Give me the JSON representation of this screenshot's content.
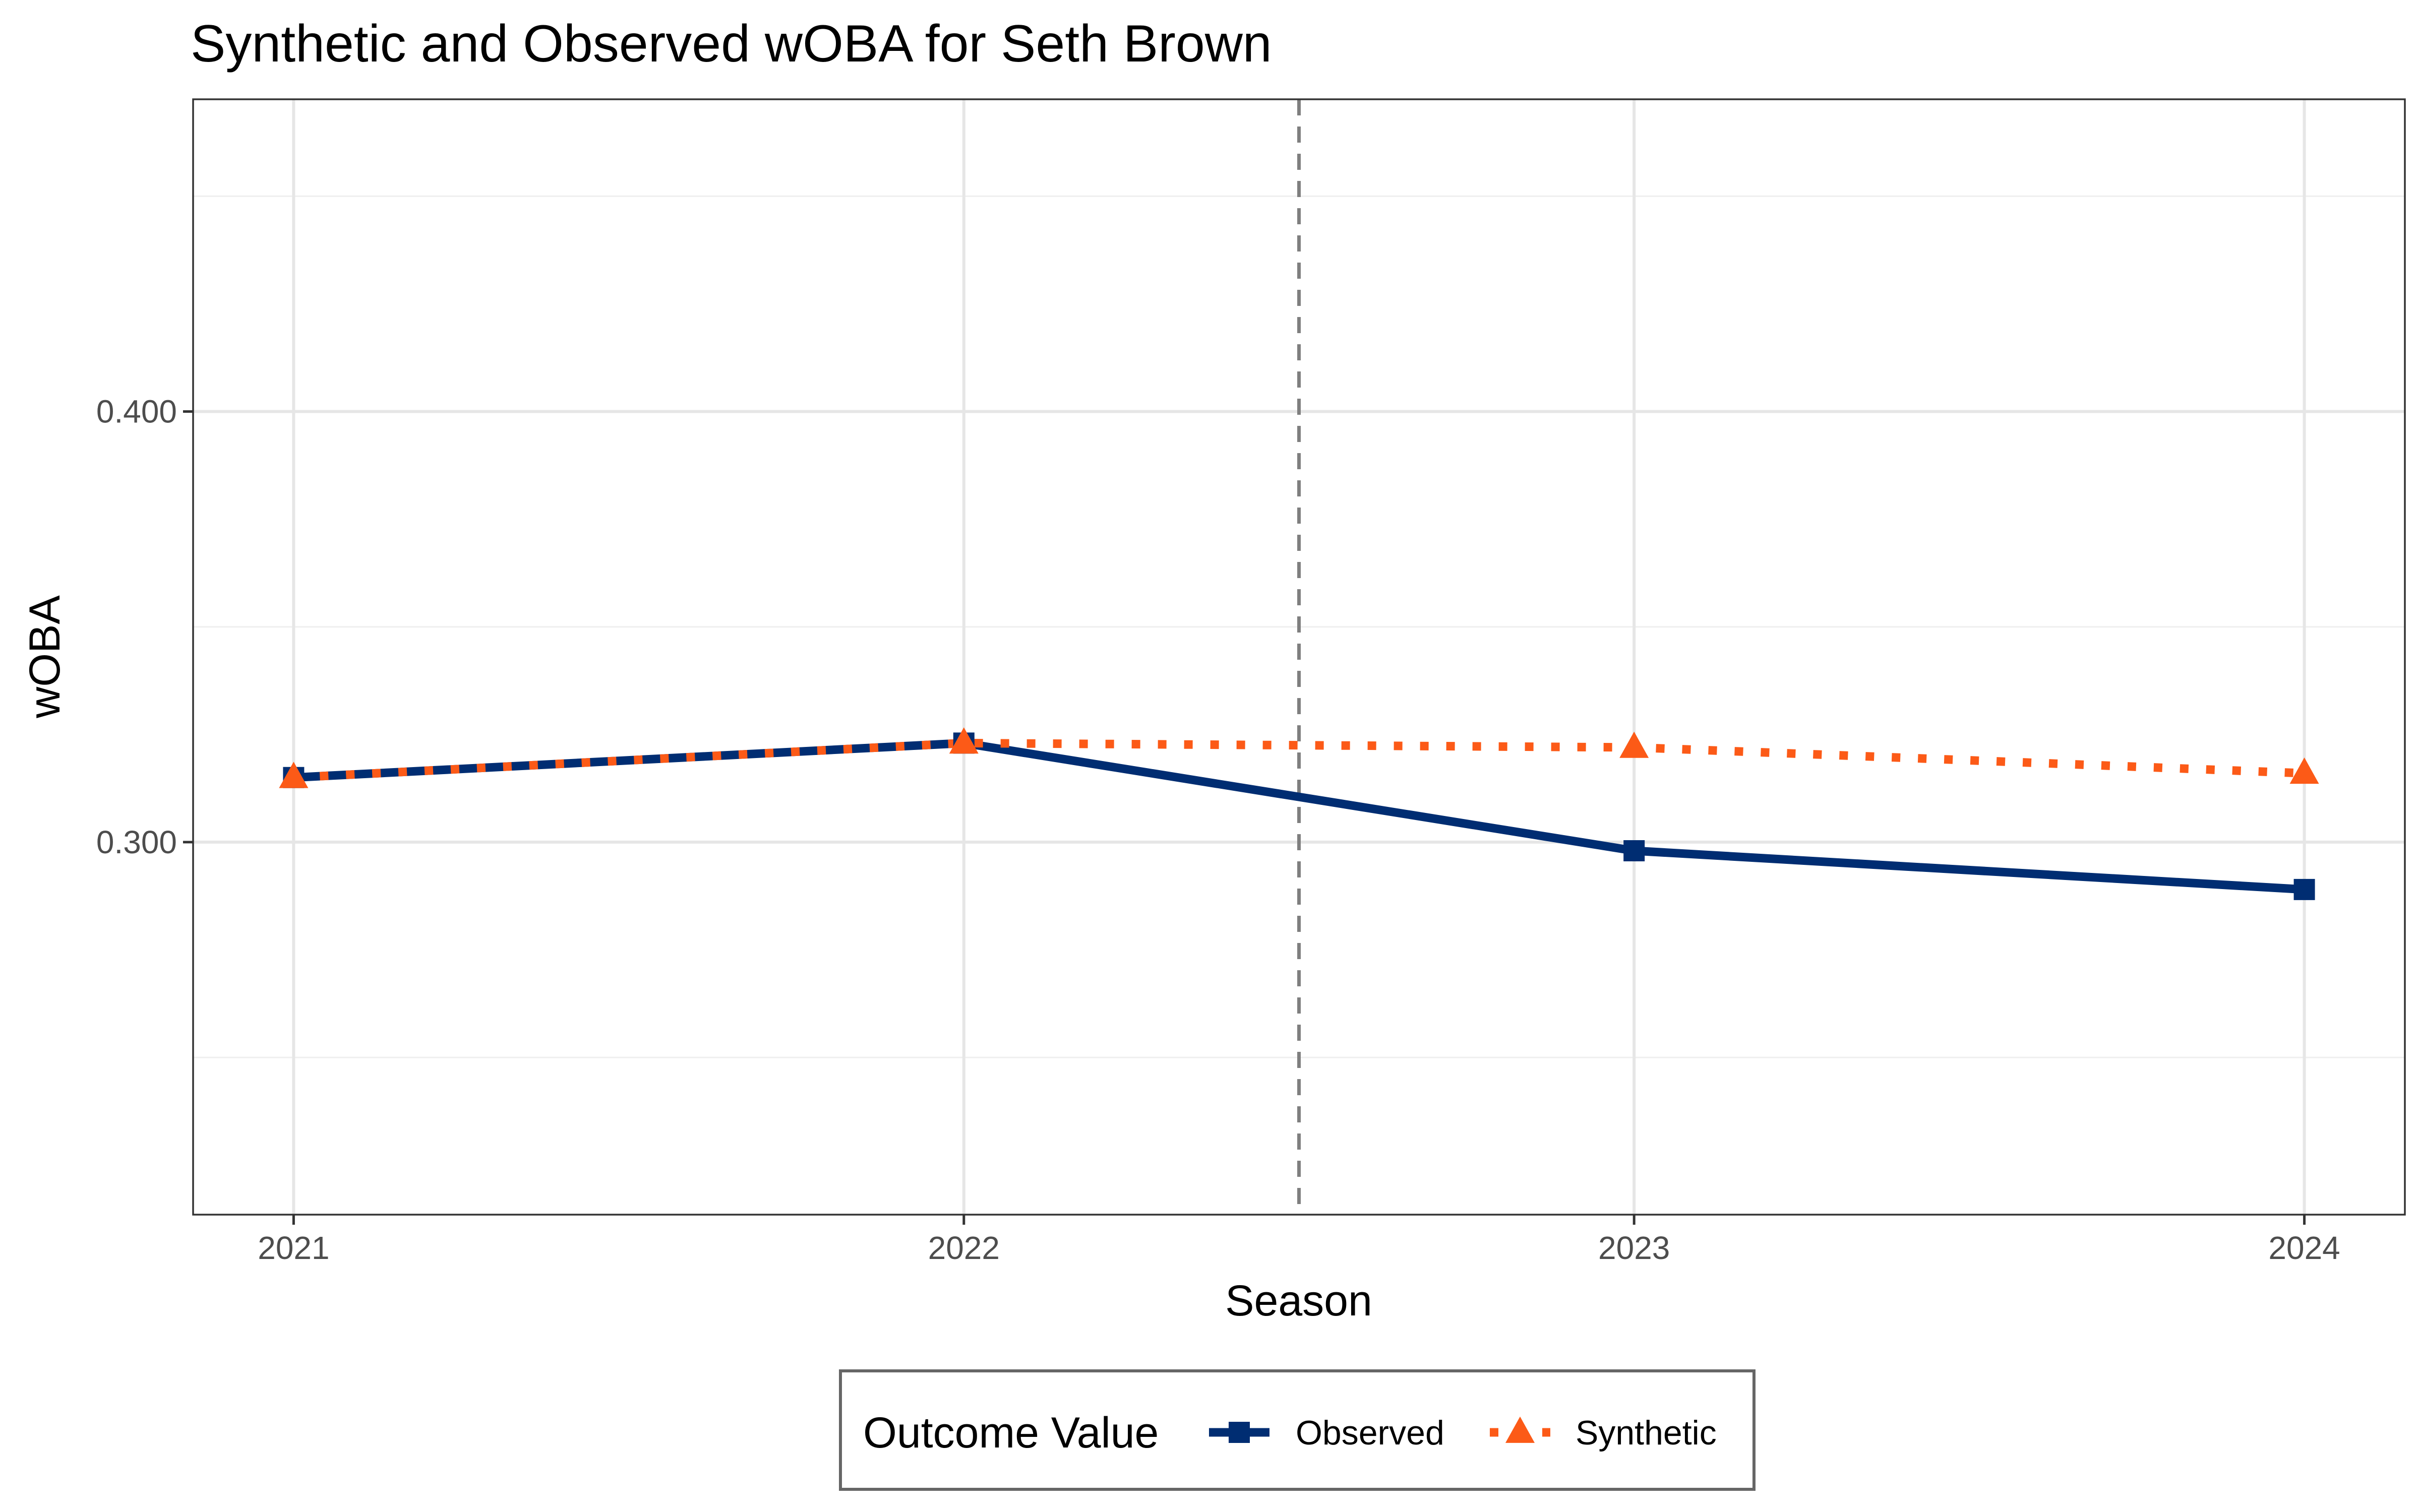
{
  "chart_data": {
    "type": "line",
    "title": "Synthetic and Observed wOBA for Seth Brown",
    "xlabel": "Season",
    "ylabel": "wOBA",
    "x": [
      2021,
      2022,
      2023,
      2024
    ],
    "x_tick_labels": [
      "2021",
      "2022",
      "2023",
      "2024"
    ],
    "y_ticks": [
      0.3,
      0.4
    ],
    "y_tick_labels": [
      "0.300",
      "0.400"
    ],
    "ylim": [
      0.2135,
      0.4725
    ],
    "xlim": [
      2020.85,
      2024.15
    ],
    "grid": true,
    "treatment_line_x": 2022.5,
    "legend": {
      "title": "Outcome Value",
      "placement": "bottom"
    },
    "series": [
      {
        "name": "Observed",
        "values": [
          0.315,
          0.323,
          0.298,
          0.289
        ],
        "color": "#002D72",
        "marker": "square",
        "line": "solid"
      },
      {
        "name": "Synthetic",
        "values": [
          0.315,
          0.323,
          0.322,
          0.316
        ],
        "color": "#FC5A17",
        "marker": "triangle",
        "line": "dotted"
      }
    ]
  }
}
